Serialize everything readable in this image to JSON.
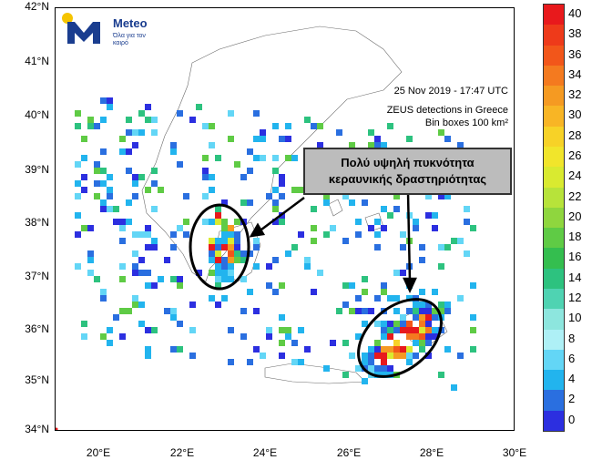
{
  "logo": {
    "title": "Meteo",
    "tagline": "Όλα για τον καιρό"
  },
  "info": {
    "datetime": "25  Nov 2019 - 17:47 UTC",
    "line2": "ZEUS detections in Greece",
    "line3": "Bin boxes 100 km²"
  },
  "callout": {
    "line1": "Πολύ υψηλή πυκνότητα",
    "line2": "κεραυνικής δραστηριότητας"
  },
  "axes": {
    "y_ticks": [
      "42°N",
      "41°N",
      "40°N",
      "39°N",
      "38°N",
      "37°N",
      "36°N",
      "35°N",
      "34°N"
    ],
    "x_ticks": [
      "20°E",
      "22°E",
      "24°E",
      "26°E",
      "28°E",
      "30°E"
    ],
    "lat_range": [
      34,
      42
    ],
    "lon_range": [
      19,
      30
    ]
  },
  "colorbar": {
    "labels": [
      "40",
      "38",
      "36",
      "34",
      "32",
      "30",
      "28",
      "26",
      "24",
      "22",
      "20",
      "18",
      "16",
      "14",
      "12",
      "10",
      "8",
      "6",
      "4",
      "2",
      "0"
    ],
    "colors": [
      "#e8191c",
      "#ee3a1a",
      "#f2561a",
      "#f47a1f",
      "#f59a22",
      "#f8b525",
      "#f7d227",
      "#f1e52b",
      "#d9ea30",
      "#b7e33a",
      "#8fd63e",
      "#5fcb45",
      "#34be4f",
      "#2dc27f",
      "#4fd3b2",
      "#8de6de",
      "#aef0f6",
      "#63d6f6",
      "#22b4ee",
      "#2a6fe0",
      "#2c2fe0"
    ]
  },
  "highlights": [
    {
      "name": "west-cluster",
      "lon": 23.05,
      "lat": 37.5
    },
    {
      "name": "east-cluster",
      "lon": 27.1,
      "lat": 35.85
    }
  ]
}
